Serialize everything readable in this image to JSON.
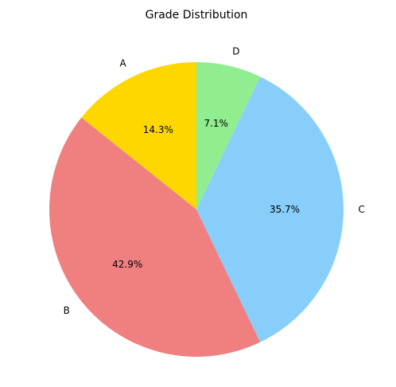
{
  "chart_data": {
    "type": "pie",
    "title": "Grade Distribution",
    "categories": [
      "A",
      "B",
      "C",
      "D"
    ],
    "values": [
      2,
      6,
      5,
      1
    ],
    "percent_labels": [
      "14.3%",
      "42.9%",
      "35.7%",
      "7.1%"
    ],
    "colors": [
      "#FFD700",
      "#F08080",
      "#87CEFA",
      "#90EE90"
    ],
    "start_angle_deg": 90,
    "direction": "counterclockwise",
    "legend": "none"
  }
}
